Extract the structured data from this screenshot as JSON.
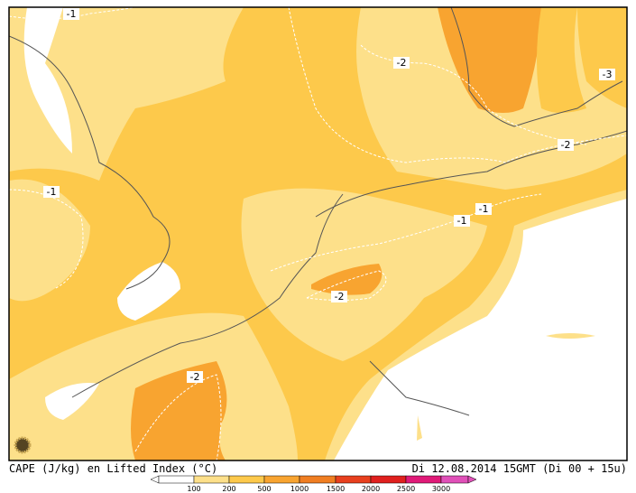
{
  "map": {
    "contour_labels": [
      "-1",
      "-2",
      "-3",
      "-2",
      "-1",
      "-1",
      "-1",
      "-2",
      "-2"
    ],
    "caption_left": "CAPE (J/kg) en Lifted Index (°C)",
    "caption_right": "Di 12.08.2014 15GMT (Di 00 + 15u)",
    "colorbar_labels": [
      "100",
      "200",
      "500",
      "1000",
      "1500",
      "2000",
      "2500",
      "3000"
    ]
  }
}
